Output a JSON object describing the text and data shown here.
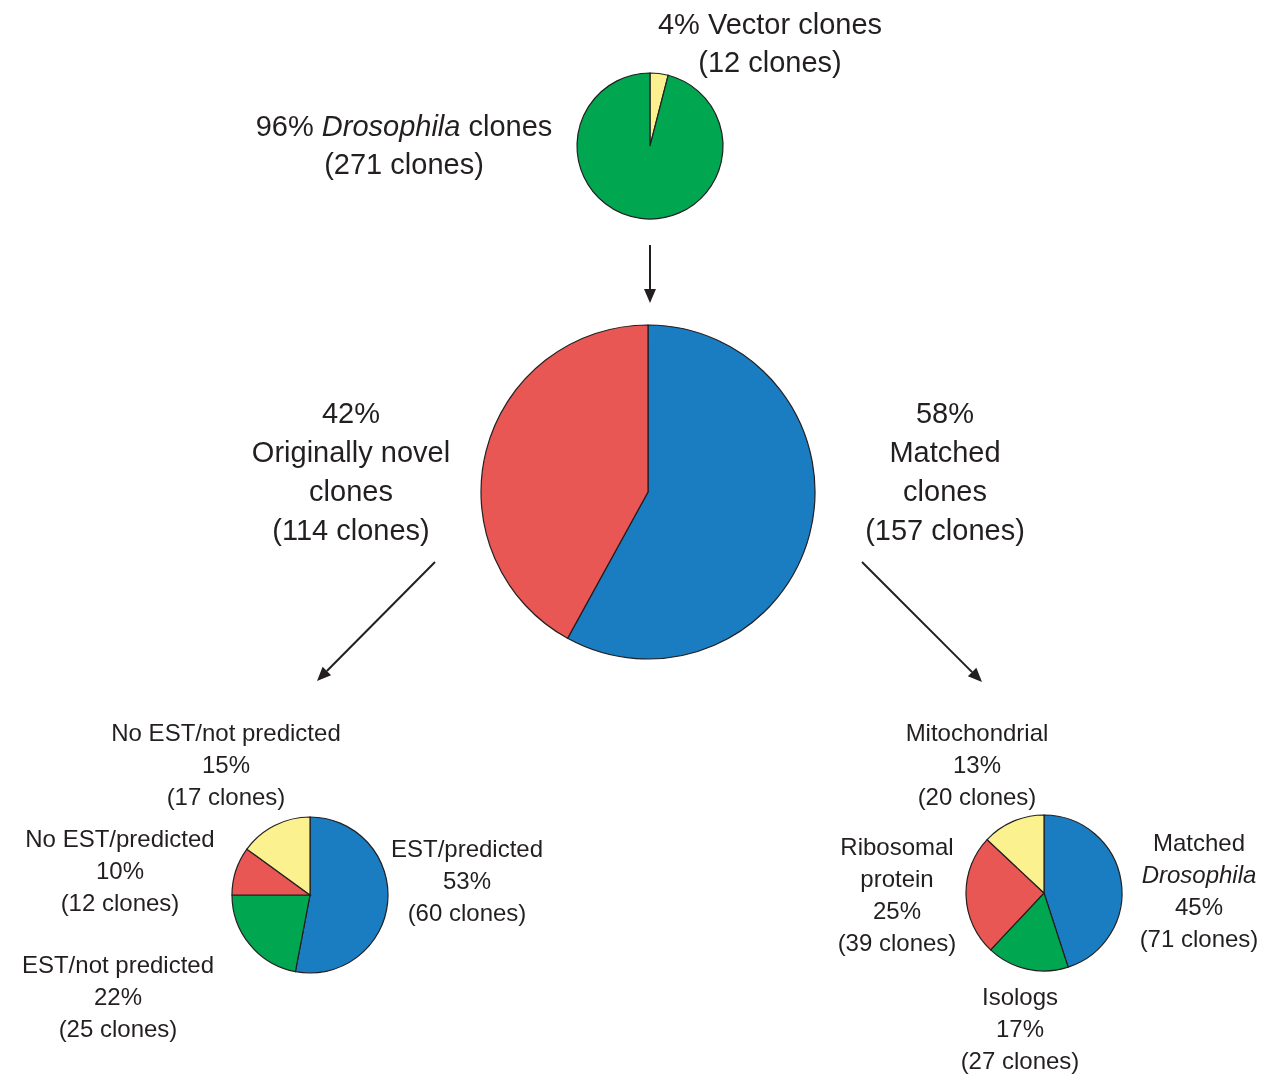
{
  "chart_data": [
    {
      "type": "pie",
      "categories": [
        "Vector clones",
        "Drosophila clones"
      ],
      "values": [
        4,
        96
      ],
      "colors": [
        "#fbf28f",
        "#00a650"
      ],
      "value_labels": [
        "4%\n(12 clones)",
        "96%\n(271 clones)"
      ]
    },
    {
      "type": "pie",
      "categories": [
        "Matched\nclones",
        "Originally novel\nclones"
      ],
      "values": [
        58,
        42
      ],
      "colors": [
        "#1a7cc1",
        "#e85753"
      ],
      "value_labels": [
        "58%\n(157 clones)",
        "42%\n(114 clones)"
      ]
    },
    {
      "type": "pie",
      "categories": [
        "EST/predicted",
        "EST/not predicted",
        "No EST/predicted",
        "No EST/not predicted"
      ],
      "values": [
        53,
        22,
        10,
        15
      ],
      "colors": [
        "#1a7cc1",
        "#00a650",
        "#e85753",
        "#fbf28f"
      ],
      "value_labels": [
        "53%\n(60 clones)",
        "22%\n(25 clones)",
        "10%\n(12 clones)",
        "15%\n(17 clones)"
      ]
    },
    {
      "type": "pie",
      "categories": [
        "Matched\nDrosophila",
        "Isologs",
        "Ribosomal\nprotein",
        "Mitochondrial"
      ],
      "values": [
        45,
        17,
        25,
        13
      ],
      "colors": [
        "#1a7cc1",
        "#00a650",
        "#e85753",
        "#fbf28f"
      ],
      "value_labels": [
        "45%\n(71 clones)",
        "17%\n(27 clones)",
        "25%\n(39 clones)",
        "13%\n(20 clones)"
      ]
    }
  ]
}
